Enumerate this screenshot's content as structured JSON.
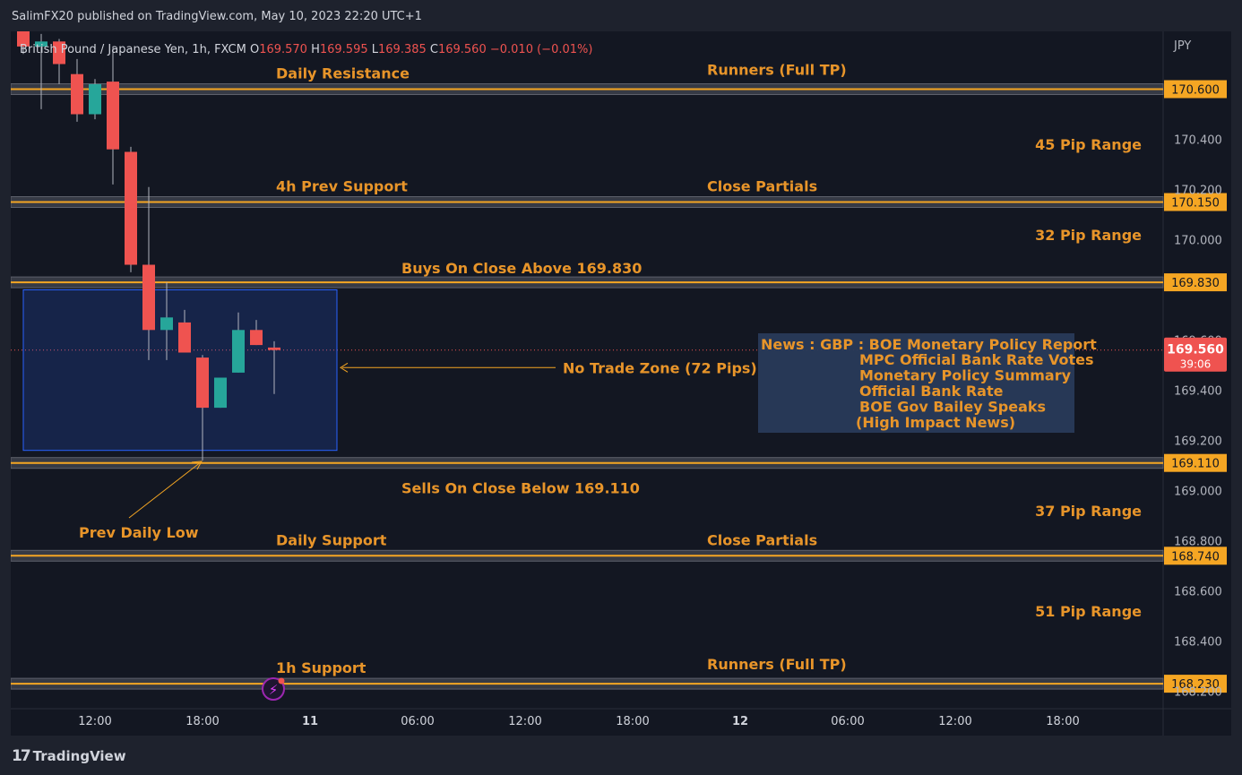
{
  "header": {
    "publisher": "SalimFX20 published on TradingView.com, May 10, 2023 22:20 UTC+1",
    "symbol_title": "British Pound / Japanese Yen, 1h, FXCM",
    "ohlc": {
      "o_label": "O",
      "o": "169.570",
      "h_label": "H",
      "h": "169.595",
      "l_label": "L",
      "l": "169.385",
      "c_label": "C",
      "c": "169.560",
      "change": "−0.010 (−0.01%)"
    }
  },
  "footer": {
    "logo": "TradingView"
  },
  "colors": {
    "bg": "#131722",
    "up": "#26a69a",
    "down": "#ef5350",
    "level": "#f5a623",
    "annotation": "#e8952a",
    "box": "#2962ff"
  },
  "chart_data": {
    "type": "candlestick",
    "currency": "JPY",
    "ylim": [
      168.14,
      170.85
    ],
    "y_ticks": [
      "170.400",
      "170.200",
      "170.000",
      "169.600",
      "169.400",
      "169.200",
      "169.000",
      "168.800",
      "168.600",
      "168.400",
      "168.200"
    ],
    "x_ticks": [
      {
        "hour": 12,
        "label": "12:00"
      },
      {
        "hour": 18,
        "label": "18:00"
      },
      {
        "hour": 24,
        "label": "11"
      },
      {
        "hour": 30,
        "label": "06:00"
      },
      {
        "hour": 36,
        "label": "12:00"
      },
      {
        "hour": 42,
        "label": "18:00"
      },
      {
        "hour": 48,
        "label": "12"
      },
      {
        "hour": 54,
        "label": "06:00"
      },
      {
        "hour": 60,
        "label": "12:00"
      },
      {
        "hour": 66,
        "label": "18:00"
      }
    ],
    "xlim_hours": [
      7.5,
      72.5
    ],
    "candles": [
      {
        "h": 8,
        "o": 170.84,
        "hi": 170.86,
        "lo": 170.74,
        "c": 170.77
      },
      {
        "h": 9,
        "o": 170.77,
        "hi": 170.82,
        "lo": 170.52,
        "c": 170.79
      },
      {
        "h": 10,
        "o": 170.79,
        "hi": 170.8,
        "lo": 170.62,
        "c": 170.7
      },
      {
        "h": 11,
        "o": 170.66,
        "hi": 170.72,
        "lo": 170.47,
        "c": 170.5
      },
      {
        "h": 12,
        "o": 170.5,
        "hi": 170.64,
        "lo": 170.48,
        "c": 170.62
      },
      {
        "h": 13,
        "o": 170.63,
        "hi": 170.77,
        "lo": 170.22,
        "c": 170.36
      },
      {
        "h": 14,
        "o": 170.35,
        "hi": 170.37,
        "lo": 169.87,
        "c": 169.9
      },
      {
        "h": 15,
        "o": 169.9,
        "hi": 170.21,
        "lo": 169.52,
        "c": 169.64
      },
      {
        "h": 16,
        "o": 169.64,
        "hi": 169.83,
        "lo": 169.52,
        "c": 169.69
      },
      {
        "h": 17,
        "o": 169.67,
        "hi": 169.72,
        "lo": 169.55,
        "c": 169.55
      },
      {
        "h": 18,
        "o": 169.53,
        "hi": 169.54,
        "lo": 169.12,
        "c": 169.33
      },
      {
        "h": 19,
        "o": 169.33,
        "hi": 169.43,
        "lo": 169.33,
        "c": 169.45
      },
      {
        "h": 20,
        "o": 169.47,
        "hi": 169.71,
        "lo": 169.47,
        "c": 169.64
      },
      {
        "h": 21,
        "o": 169.64,
        "hi": 169.68,
        "lo": 169.58,
        "c": 169.58
      },
      {
        "h": 22,
        "o": 169.57,
        "hi": 169.595,
        "lo": 169.385,
        "c": 169.56
      }
    ],
    "levels": [
      {
        "price": 170.6,
        "label": "170.600",
        "left_note": "Daily Resistance",
        "right_note": "Runners (Full TP)"
      },
      {
        "price": 170.15,
        "label": "170.150",
        "left_note": "4h Prev Support",
        "right_note": "Close Partials"
      },
      {
        "price": 169.83,
        "label": "169.830",
        "center_note": "Buys On Close Above 169.830"
      },
      {
        "price": 169.11,
        "label": "169.110",
        "center_note": "Sells On Close Below 169.110"
      },
      {
        "price": 168.74,
        "label": "168.740",
        "left_note": "Daily Support",
        "right_note": "Close Partials"
      },
      {
        "price": 168.23,
        "label": "168.230",
        "left_note": "1h Support",
        "right_note": "Runners (Full TP)"
      }
    ],
    "ranges": [
      {
        "label": "45 Pip Range",
        "price": 170.38
      },
      {
        "label": "32 Pip Range",
        "price": 170.02
      },
      {
        "label": "37 Pip Range",
        "price": 168.92
      },
      {
        "label": "51 Pip Range",
        "price": 168.52
      }
    ],
    "last_price": {
      "label": "169.560",
      "countdown": "39:06",
      "price": 169.56
    },
    "no_trade_zone": {
      "label": "No Trade Zone (72 Pips)",
      "top": 169.8,
      "bottom": 169.16,
      "from_hour": 8.5,
      "to_hour": 25.0
    },
    "prev_daily_low": {
      "label": "Prev Daily Low",
      "price": 169.12,
      "hour": 18
    },
    "news": {
      "title": "News : GBP : BOE Monetary Policy Report",
      "items": [
        "MPC Official Bank Rate Votes",
        "Monetary Policy Summary",
        "Official Bank Rate",
        "BOE Gov Bailey Speaks",
        "(High Impact News)"
      ]
    }
  }
}
